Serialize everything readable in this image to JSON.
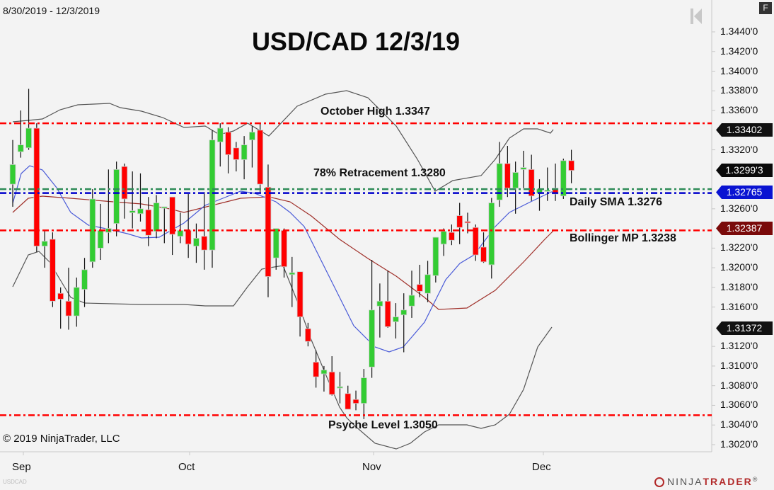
{
  "header": {
    "date_range": "8/30/2019 - 12/3/2019",
    "title": "USD/CAD 12/3/19",
    "panel_button": "F",
    "scroll_icon": "skip-to-start-icon"
  },
  "footer": {
    "copyright": "© 2019 NinjaTrader, LLC",
    "symbol": "USDCAD",
    "logo_text_a": "NINJA",
    "logo_text_b": "TRADER",
    "logo_mark": "®"
  },
  "annotations": {
    "october_high": "October High 1.3347",
    "retracement": "78% Retracement 1.3280",
    "daily_sma": "Daily SMA 1.3276",
    "bollinger_mp": "Bollinger MP 1.3238",
    "psyche_level": "Psyche Level 1.3050"
  },
  "y_axis": {
    "ticks": [
      "1.3440'0",
      "1.3420'0",
      "1.3400'0",
      "1.3380'0",
      "1.3360'0",
      "1.3320'0",
      "1.3260'0",
      "1.3220'0",
      "1.3200'0",
      "1.3180'0",
      "1.3160'0",
      "1.3120'0",
      "1.3100'0",
      "1.3080'0",
      "1.3060'0",
      "1.3040'0",
      "1.3020'0"
    ]
  },
  "price_tags": [
    {
      "label": "1.33402",
      "color": "#111111"
    },
    {
      "label": "1.3299'3",
      "color": "#0a0a0a"
    },
    {
      "label": "1.32765",
      "color": "#0a14d2"
    },
    {
      "label": "1.32387",
      "color": "#7a0a0a"
    },
    {
      "label": "1.31372",
      "color": "#111111"
    }
  ],
  "x_axis": {
    "ticks": [
      "Sep",
      "Oct",
      "Nov",
      "Dec"
    ]
  },
  "colors": {
    "up": "#33cc33",
    "down": "#ff0000",
    "resistance_line": "#ff0000",
    "retracement_line": "#2e8b57",
    "sma_line": "#0000cc",
    "bollinger_upper_lower": "#555555",
    "bollinger_mid": "#a0302a",
    "ema_blue": "#4a5bd8",
    "background": "#f3f3f3"
  },
  "chart_data": {
    "type": "candlestick",
    "title": "USD/CAD 12/3/19",
    "subtitle": "8/30/2019 - 12/3/2019",
    "xlabel": "",
    "ylabel": "",
    "ylim": [
      1.301,
      1.345
    ],
    "x_ticks": [
      "Sep",
      "Oct",
      "Nov",
      "Dec"
    ],
    "grid": false,
    "horizontal_levels": [
      {
        "name": "October High",
        "value": 1.3347,
        "style": "dash-dot",
        "color": "#ff0000"
      },
      {
        "name": "78% Retracement",
        "value": 1.328,
        "style": "dash-dot",
        "color": "#2e8b57"
      },
      {
        "name": "Daily SMA",
        "value": 1.3276,
        "style": "dash-dot",
        "color": "#0000cc"
      },
      {
        "name": "Bollinger MP",
        "value": 1.3238,
        "style": "dash-dot",
        "color": "#ff0000"
      },
      {
        "name": "Psyche Level",
        "value": 1.305,
        "style": "dash-dot",
        "color": "#ff0000"
      }
    ],
    "last_values": {
      "bollinger_upper": 1.33402,
      "last_price": 1.32993,
      "sma": 1.32765,
      "bollinger_mid": 1.32387,
      "bollinger_lower": 1.31372
    },
    "candles": [
      {
        "o": 1.3285,
        "h": 1.333,
        "l": 1.3262,
        "c": 1.3305
      },
      {
        "o": 1.3318,
        "h": 1.336,
        "l": 1.3312,
        "c": 1.3325
      },
      {
        "o": 1.3322,
        "h": 1.3382,
        "l": 1.332,
        "c": 1.3342
      },
      {
        "o": 1.3342,
        "h": 1.3347,
        "l": 1.3216,
        "c": 1.3222
      },
      {
        "o": 1.3222,
        "h": 1.3238,
        "l": 1.32,
        "c": 1.3227
      },
      {
        "o": 1.3229,
        "h": 1.3236,
        "l": 1.316,
        "c": 1.3166
      },
      {
        "o": 1.3174,
        "h": 1.318,
        "l": 1.3138,
        "c": 1.3168
      },
      {
        "o": 1.3166,
        "h": 1.32,
        "l": 1.3137,
        "c": 1.3151
      },
      {
        "o": 1.3151,
        "h": 1.319,
        "l": 1.314,
        "c": 1.318
      },
      {
        "o": 1.3178,
        "h": 1.321,
        "l": 1.316,
        "c": 1.3198
      },
      {
        "o": 1.3206,
        "h": 1.328,
        "l": 1.32,
        "c": 1.327
      },
      {
        "o": 1.322,
        "h": 1.3265,
        "l": 1.3208,
        "c": 1.3238
      },
      {
        "o": 1.3236,
        "h": 1.33,
        "l": 1.3225,
        "c": 1.324
      },
      {
        "o": 1.3245,
        "h": 1.3308,
        "l": 1.3232,
        "c": 1.33
      },
      {
        "o": 1.3303,
        "h": 1.3306,
        "l": 1.325,
        "c": 1.327
      },
      {
        "o": 1.3256,
        "h": 1.3298,
        "l": 1.324,
        "c": 1.3258
      },
      {
        "o": 1.3255,
        "h": 1.3296,
        "l": 1.3247,
        "c": 1.326
      },
      {
        "o": 1.3259,
        "h": 1.3272,
        "l": 1.3222,
        "c": 1.3233
      },
      {
        "o": 1.3237,
        "h": 1.3274,
        "l": 1.323,
        "c": 1.3266
      },
      {
        "o": 1.3262,
        "h": 1.3262,
        "l": 1.3225,
        "c": 1.3262
      },
      {
        "o": 1.3272,
        "h": 1.3266,
        "l": 1.3213,
        "c": 1.3234
      },
      {
        "o": 1.3232,
        "h": 1.3256,
        "l": 1.3225,
        "c": 1.3238
      },
      {
        "o": 1.3238,
        "h": 1.3275,
        "l": 1.321,
        "c": 1.3224
      },
      {
        "o": 1.3222,
        "h": 1.3245,
        "l": 1.3205,
        "c": 1.323
      },
      {
        "o": 1.3232,
        "h": 1.3277,
        "l": 1.3198,
        "c": 1.3218
      },
      {
        "o": 1.3218,
        "h": 1.334,
        "l": 1.32,
        "c": 1.333
      },
      {
        "o": 1.3328,
        "h": 1.3347,
        "l": 1.3303,
        "c": 1.3342
      },
      {
        "o": 1.3338,
        "h": 1.3343,
        "l": 1.3296,
        "c": 1.3315
      },
      {
        "o": 1.3322,
        "h": 1.3328,
        "l": 1.3298,
        "c": 1.331
      },
      {
        "o": 1.331,
        "h": 1.3334,
        "l": 1.329,
        "c": 1.3325
      },
      {
        "o": 1.333,
        "h": 1.3344,
        "l": 1.3302,
        "c": 1.3338
      },
      {
        "o": 1.334,
        "h": 1.3347,
        "l": 1.3276,
        "c": 1.3285
      },
      {
        "o": 1.3282,
        "h": 1.3305,
        "l": 1.317,
        "c": 1.3191
      },
      {
        "o": 1.321,
        "h": 1.3238,
        "l": 1.3198,
        "c": 1.324
      },
      {
        "o": 1.3238,
        "h": 1.324,
        "l": 1.319,
        "c": 1.3201
      },
      {
        "o": 1.3193,
        "h": 1.3211,
        "l": 1.316,
        "c": 1.3195
      },
      {
        "o": 1.3196,
        "h": 1.3195,
        "l": 1.313,
        "c": 1.315
      },
      {
        "o": 1.3138,
        "h": 1.3144,
        "l": 1.312,
        "c": 1.3125
      },
      {
        "o": 1.3104,
        "h": 1.3116,
        "l": 1.3078,
        "c": 1.3089
      },
      {
        "o": 1.3092,
        "h": 1.31,
        "l": 1.3074,
        "c": 1.3096
      },
      {
        "o": 1.3094,
        "h": 1.311,
        "l": 1.307,
        "c": 1.3071
      },
      {
        "o": 1.3079,
        "h": 1.3094,
        "l": 1.3062,
        "c": 1.3079
      },
      {
        "o": 1.3072,
        "h": 1.308,
        "l": 1.3058,
        "c": 1.3056
      },
      {
        "o": 1.3066,
        "h": 1.3075,
        "l": 1.3055,
        "c": 1.3062
      },
      {
        "o": 1.3062,
        "h": 1.3097,
        "l": 1.3046,
        "c": 1.3088
      },
      {
        "o": 1.3099,
        "h": 1.3208,
        "l": 1.3088,
        "c": 1.3157
      },
      {
        "o": 1.3161,
        "h": 1.3184,
        "l": 1.3129,
        "c": 1.3166
      },
      {
        "o": 1.3166,
        "h": 1.3197,
        "l": 1.3139,
        "c": 1.314
      },
      {
        "o": 1.3145,
        "h": 1.3164,
        "l": 1.3128,
        "c": 1.315
      },
      {
        "o": 1.3152,
        "h": 1.3174,
        "l": 1.3114,
        "c": 1.3157
      },
      {
        "o": 1.3161,
        "h": 1.3197,
        "l": 1.3149,
        "c": 1.3172
      },
      {
        "o": 1.3183,
        "h": 1.3203,
        "l": 1.317,
        "c": 1.3176
      },
      {
        "o": 1.3174,
        "h": 1.3207,
        "l": 1.3165,
        "c": 1.3193
      },
      {
        "o": 1.3192,
        "h": 1.3229,
        "l": 1.3185,
        "c": 1.3231
      },
      {
        "o": 1.3224,
        "h": 1.324,
        "l": 1.3212,
        "c": 1.3237
      },
      {
        "o": 1.3236,
        "h": 1.3244,
        "l": 1.3223,
        "c": 1.3228
      },
      {
        "o": 1.3253,
        "h": 1.3266,
        "l": 1.3224,
        "c": 1.3241
      },
      {
        "o": 1.3247,
        "h": 1.3256,
        "l": 1.3235,
        "c": 1.3246
      },
      {
        "o": 1.3241,
        "h": 1.3244,
        "l": 1.3207,
        "c": 1.3213
      },
      {
        "o": 1.3221,
        "h": 1.3236,
        "l": 1.3205,
        "c": 1.3206
      },
      {
        "o": 1.3203,
        "h": 1.3271,
        "l": 1.3189,
        "c": 1.3266
      },
      {
        "o": 1.3269,
        "h": 1.3328,
        "l": 1.3262,
        "c": 1.3306
      },
      {
        "o": 1.3306,
        "h": 1.3324,
        "l": 1.3272,
        "c": 1.3281
      },
      {
        "o": 1.3281,
        "h": 1.3308,
        "l": 1.3255,
        "c": 1.3297
      },
      {
        "o": 1.33,
        "h": 1.3319,
        "l": 1.3281,
        "c": 1.3302
      },
      {
        "o": 1.33,
        "h": 1.3315,
        "l": 1.3268,
        "c": 1.3273
      },
      {
        "o": 1.3276,
        "h": 1.329,
        "l": 1.3258,
        "c": 1.328
      },
      {
        "o": 1.3279,
        "h": 1.3302,
        "l": 1.3268,
        "c": 1.3279
      },
      {
        "o": 1.3281,
        "h": 1.3306,
        "l": 1.3268,
        "c": 1.3275
      },
      {
        "o": 1.3273,
        "h": 1.3311,
        "l": 1.327,
        "c": 1.3309
      },
      {
        "o": 1.3309,
        "h": 1.332,
        "l": 1.3286,
        "c": 1.3299
      }
    ]
  }
}
